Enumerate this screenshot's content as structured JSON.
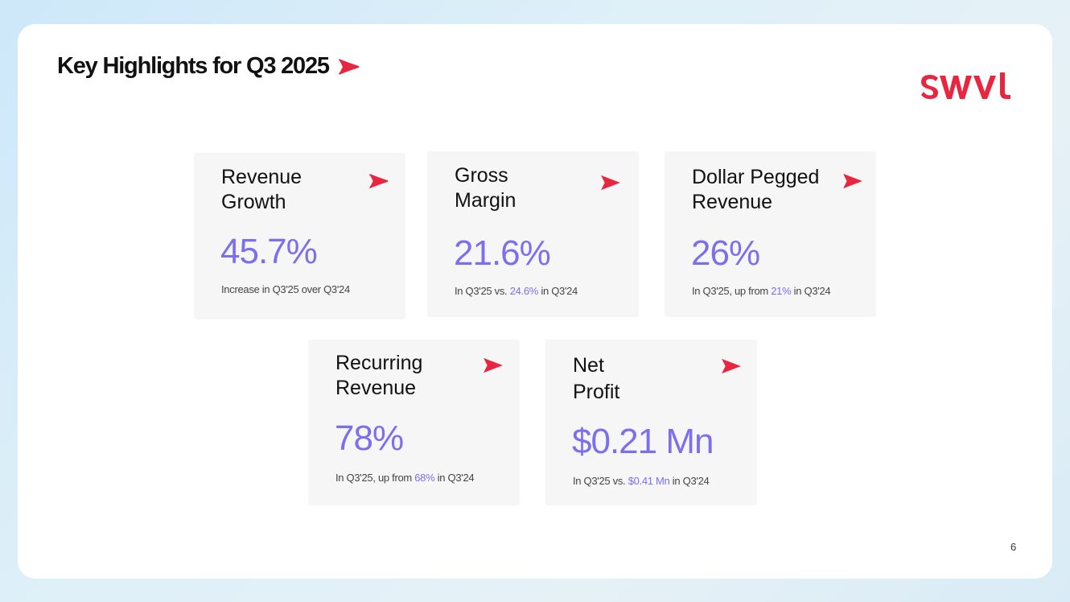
{
  "title": "Key Highlights for Q3 2025",
  "page_number": "6",
  "brand": {
    "name": "SWVL",
    "accent": "#e8263f",
    "value_color": "#7b6ff0"
  },
  "cards": [
    {
      "head_1": "Revenue",
      "head_2": "Growth",
      "value": "45.7%",
      "note_pre": "Increase in Q3'25 over Q3'24",
      "note_hl": "",
      "note_post": ""
    },
    {
      "head_1": "Gross",
      "head_2": "Margin",
      "value": "21.6%",
      "note_pre": "In Q3'25 vs. ",
      "note_hl": "24.6%",
      "note_post": " in Q3'24"
    },
    {
      "head_1": "Dollar Pegged",
      "head_2": "Revenue",
      "value": "26%",
      "note_pre": "In Q3'25, up from ",
      "note_hl": "21%",
      "note_post": " in Q3'24"
    },
    {
      "head_1": "Recurring",
      "head_2": "Revenue",
      "value": "78%",
      "note_pre": "In Q3'25, up from ",
      "note_hl": "68%",
      "note_post": " in Q3'24"
    },
    {
      "head_1": "Net",
      "head_2": "Profit",
      "value": "$0.21 Mn",
      "note_pre": "In Q3'25 vs. ",
      "note_hl": "$0.41 Mn",
      "note_post": " in Q3'24"
    }
  ]
}
